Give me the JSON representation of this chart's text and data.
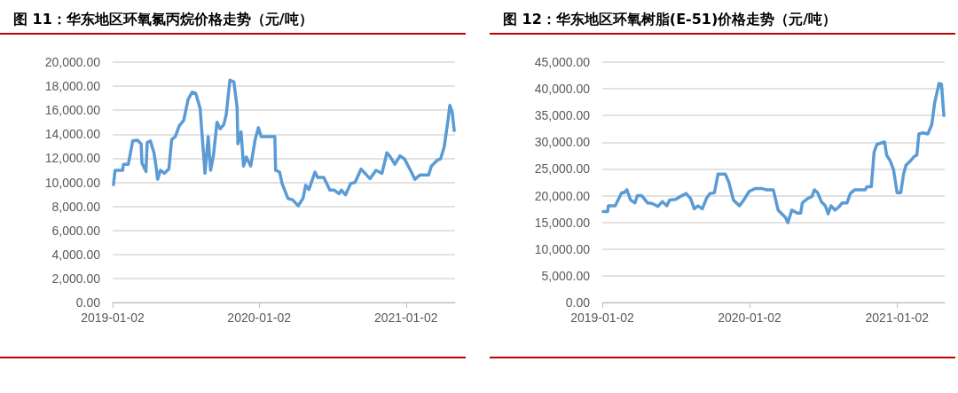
{
  "chart_data": [
    {
      "type": "line",
      "title": "图 11：华东地区环氧氯丙烷价格走势（元/吨）",
      "grid": "y",
      "marker": "none",
      "line_style": "solid",
      "xlim": [
        "2019-01-02",
        "2021-05-04"
      ],
      "xticks": [
        "2019-01-02",
        "2020-01-02",
        "2021-01-02"
      ],
      "ylim": [
        0,
        20000
      ],
      "yticks": [
        {
          "value": 0,
          "label": "0.00"
        },
        {
          "value": 2000,
          "label": "2,000.00"
        },
        {
          "value": 4000,
          "label": "4,000.00"
        },
        {
          "value": 6000,
          "label": "6,000.00"
        },
        {
          "value": 8000,
          "label": "8,000.00"
        },
        {
          "value": 10000,
          "label": "10,000.00"
        },
        {
          "value": 12000,
          "label": "12,000.00"
        },
        {
          "value": 14000,
          "label": "14,000.00"
        },
        {
          "value": 16000,
          "label": "16,000.00"
        },
        {
          "value": 18000,
          "label": "18,000.00"
        },
        {
          "value": 20000,
          "label": "20,000.00"
        }
      ],
      "series": [
        {
          "color": "#5b9bd5",
          "x": [
            "2019-01-04",
            "2019-01-08",
            "2019-01-27",
            "2019-01-29",
            "2019-02-10",
            "2019-02-14",
            "2019-02-21",
            "2019-03-05",
            "2019-03-14",
            "2019-03-16",
            "2019-03-26",
            "2019-03-29",
            "2019-04-06",
            "2019-04-15",
            "2019-04-21",
            "2019-04-24",
            "2019-05-01",
            "2019-05-11",
            "2019-05-22",
            "2019-05-29",
            "2019-06-07",
            "2019-06-17",
            "2019-06-28",
            "2019-07-09",
            "2019-07-19",
            "2019-07-28",
            "2019-08-08",
            "2019-08-12",
            "2019-08-20",
            "2019-08-28",
            "2019-09-03",
            "2019-09-10",
            "2019-09-19",
            "2019-09-27",
            "2019-10-06",
            "2019-10-12",
            "2019-10-21",
            "2019-10-31",
            "2019-11-08",
            "2019-11-10",
            "2019-11-18",
            "2019-11-24",
            "2019-12-01",
            "2019-12-12",
            "2019-12-23",
            "2019-12-31",
            "2020-01-07",
            "2020-02-10",
            "2020-02-12",
            "2020-02-22",
            "2020-02-28",
            "2020-03-14",
            "2020-03-25",
            "2020-04-08",
            "2020-04-20",
            "2020-04-27",
            "2020-05-05",
            "2020-05-20",
            "2020-05-27",
            "2020-06-11",
            "2020-06-26",
            "2020-07-07",
            "2020-07-19",
            "2020-07-25",
            "2020-08-04",
            "2020-08-17",
            "2020-08-28",
            "2020-09-12",
            "2020-10-04",
            "2020-10-19",
            "2020-11-03",
            "2020-11-15",
            "2020-11-22",
            "2020-12-05",
            "2020-12-18",
            "2020-12-29",
            "2021-01-13",
            "2021-01-24",
            "2021-02-05",
            "2021-02-27",
            "2021-03-06",
            "2021-03-21",
            "2021-03-29",
            "2021-04-07",
            "2021-04-16",
            "2021-04-21",
            "2021-04-27",
            "2021-05-02"
          ],
          "values": [
            9800,
            11000,
            11000,
            11500,
            11500,
            12200,
            13450,
            13500,
            13200,
            11600,
            10900,
            13300,
            13450,
            12450,
            11100,
            10250,
            11000,
            10750,
            11100,
            13550,
            13800,
            14700,
            15150,
            16900,
            17500,
            17400,
            16150,
            14300,
            10750,
            13800,
            11000,
            12200,
            15000,
            14450,
            14800,
            15650,
            18500,
            18350,
            16250,
            13200,
            14200,
            11350,
            12100,
            11350,
            13550,
            14550,
            13800,
            13800,
            11000,
            10850,
            9900,
            8650,
            8550,
            8050,
            8650,
            9750,
            9400,
            10850,
            10400,
            10400,
            9350,
            9350,
            9050,
            9350,
            8950,
            9900,
            10000,
            11100,
            10300,
            11000,
            10750,
            12450,
            12200,
            11500,
            12200,
            11950,
            11000,
            10250,
            10600,
            10600,
            11350,
            11850,
            11950,
            12950,
            15050,
            16400,
            15800,
            14300
          ]
        }
      ]
    },
    {
      "type": "line",
      "title": "图 12：华东地区环氧树脂(E-51)价格走势（元/吨）",
      "grid": "y",
      "marker": "none",
      "line_style": "solid",
      "xlim": [
        "2019-01-02",
        "2021-04-30"
      ],
      "xticks": [
        "2019-01-02",
        "2020-01-02",
        "2021-01-02"
      ],
      "ylim": [
        0,
        45000
      ],
      "yticks": [
        {
          "value": 0,
          "label": "0.00"
        },
        {
          "value": 5000,
          "label": "5,000.00"
        },
        {
          "value": 10000,
          "label": "10,000.00"
        },
        {
          "value": 15000,
          "label": "15,000.00"
        },
        {
          "value": 20000,
          "label": "20,000.00"
        },
        {
          "value": 25000,
          "label": "25,000.00"
        },
        {
          "value": 30000,
          "label": "30,000.00"
        },
        {
          "value": 35000,
          "label": "35,000.00"
        },
        {
          "value": 40000,
          "label": "40,000.00"
        },
        {
          "value": 45000,
          "label": "45,000.00"
        }
      ],
      "series": [
        {
          "color": "#5b9bd5",
          "x": [
            "2019-01-04",
            "2019-01-15",
            "2019-01-17",
            "2019-02-03",
            "2019-02-19",
            "2019-02-25",
            "2019-03-04",
            "2019-03-13",
            "2019-03-24",
            "2019-03-30",
            "2019-04-10",
            "2019-04-24",
            "2019-05-05",
            "2019-05-20",
            "2019-05-31",
            "2019-06-11",
            "2019-06-18",
            "2019-07-03",
            "2019-07-18",
            "2019-07-29",
            "2019-08-09",
            "2019-08-18",
            "2019-08-27",
            "2019-09-07",
            "2019-09-18",
            "2019-09-26",
            "2019-10-07",
            "2019-10-16",
            "2019-11-03",
            "2019-11-12",
            "2019-11-23",
            "2019-12-08",
            "2019-12-19",
            "2020-01-01",
            "2020-01-17",
            "2020-02-01",
            "2020-02-12",
            "2020-03-01",
            "2020-03-13",
            "2020-03-20",
            "2020-03-31",
            "2020-04-06",
            "2020-04-16",
            "2020-04-29",
            "2020-05-08",
            "2020-05-12",
            "2020-05-25",
            "2020-06-05",
            "2020-06-11",
            "2020-06-19",
            "2020-06-28",
            "2020-07-08",
            "2020-07-15",
            "2020-07-22",
            "2020-08-01",
            "2020-08-10",
            "2020-08-19",
            "2020-08-31",
            "2020-09-08",
            "2020-09-19",
            "2020-10-15",
            "2020-10-19",
            "2020-10-30",
            "2020-11-06",
            "2020-11-13",
            "2020-12-02",
            "2020-12-07",
            "2020-12-16",
            "2020-12-24",
            "2021-01-02",
            "2021-01-11",
            "2021-01-18",
            "2021-01-24",
            "2021-02-02",
            "2021-02-13",
            "2021-02-20",
            "2021-02-25",
            "2021-03-07",
            "2021-03-19",
            "2021-03-29",
            "2021-04-05",
            "2021-04-16",
            "2021-04-22",
            "2021-04-28"
          ],
          "values": [
            17000,
            17000,
            18100,
            18100,
            20550,
            20550,
            21100,
            19200,
            18650,
            20000,
            20000,
            18650,
            18550,
            18000,
            18900,
            18100,
            19200,
            19300,
            20000,
            20400,
            19450,
            17550,
            18100,
            17550,
            19600,
            20400,
            20550,
            24050,
            24050,
            22450,
            19200,
            18100,
            19200,
            20800,
            21350,
            21350,
            21100,
            21100,
            17300,
            16750,
            15950,
            14950,
            17300,
            16750,
            16750,
            18650,
            19450,
            19850,
            21100,
            20550,
            18900,
            18100,
            16600,
            18100,
            17300,
            17850,
            18650,
            18650,
            20400,
            21100,
            21100,
            21650,
            21650,
            28150,
            29600,
            30050,
            27600,
            26500,
            24900,
            20550,
            20550,
            24050,
            25700,
            26350,
            27300,
            27600,
            31550,
            31750,
            31550,
            33300,
            37350,
            41000,
            40850,
            35000
          ]
        }
      ]
    }
  ]
}
